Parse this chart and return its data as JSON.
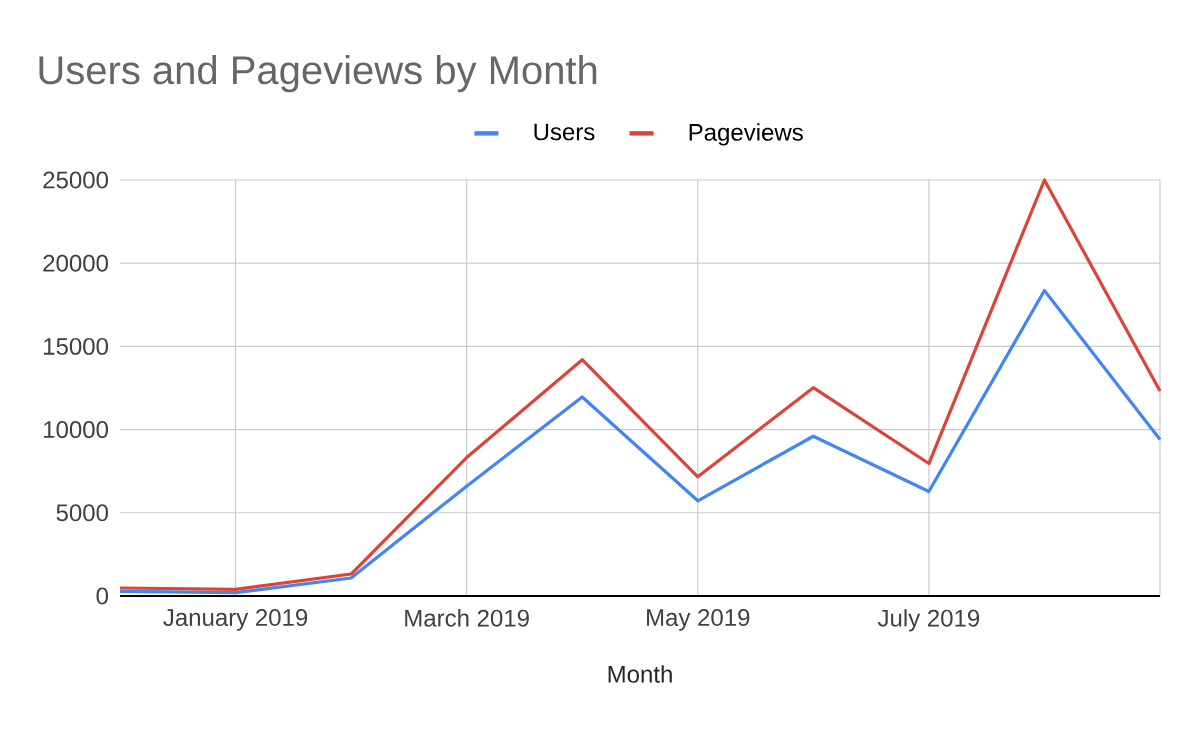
{
  "chart_data": {
    "type": "line",
    "title": "Users and Pageviews by Month",
    "xlabel": "Month",
    "categories": [
      null,
      "January 2019",
      null,
      "March 2019",
      null,
      "May 2019",
      null,
      "July 2019",
      null,
      null
    ],
    "series": [
      {
        "name": "Users",
        "color": "#4285f4",
        "values": [
          280,
          200,
          1080,
          6600,
          11960,
          5720,
          9600,
          6280,
          18360,
          9400
        ]
      },
      {
        "name": "Pageviews",
        "color": "#db4437",
        "values": [
          480,
          400,
          1320,
          8320,
          14200,
          7160,
          12520,
          7960,
          25000,
          12320
        ]
      }
    ],
    "ylim": [
      0,
      25000
    ],
    "yticks": [
      0,
      5000,
      10000,
      15000,
      20000,
      25000
    ],
    "grid": true,
    "legend": "top"
  }
}
